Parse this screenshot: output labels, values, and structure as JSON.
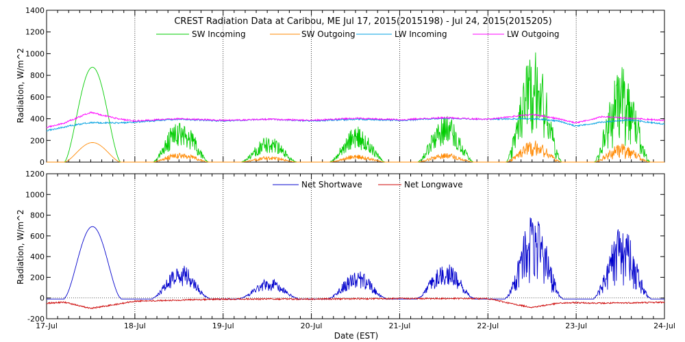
{
  "chart_data": [
    {
      "type": "line",
      "panel": "top",
      "title": "CREST Radiation Data at Caribou, ME   Jul 17, 2015(2015198) - Jul 24, 2015(2015205)",
      "ylabel": "Radiation, W/m^2",
      "xlabel": "",
      "xlim": [
        0,
        7
      ],
      "ylim": [
        0,
        1400
      ],
      "yticks": [
        "0",
        "200",
        "400",
        "600",
        "800",
        "1000",
        "1200",
        "1400"
      ],
      "grid": "dotted vertical at day boundaries",
      "legend_position": "top",
      "series": [
        {
          "name": "SW Incoming",
          "color": "#00cc00",
          "day_peaks": [
            875,
            420,
            240,
            330,
            440,
            1020,
            880
          ],
          "day_shape": [
            "smooth",
            "noisy",
            "noisy",
            "noisy",
            "noisy",
            "spiky",
            "spiky"
          ]
        },
        {
          "name": "SW Outgoing",
          "color": "#ff8800",
          "day_peaks": [
            180,
            95,
            55,
            70,
            85,
            200,
            170
          ]
        },
        {
          "name": "LW Incoming",
          "color": "#00a0e0",
          "x": [
            0,
            0.3,
            0.5,
            0.8,
            1.0,
            1.5,
            2.0,
            2.5,
            3.0,
            3.5,
            4.0,
            4.5,
            5.0,
            5.5,
            5.8,
            6.0,
            6.3,
            6.6,
            7.0
          ],
          "y": [
            290,
            340,
            365,
            360,
            370,
            395,
            380,
            395,
            380,
            395,
            385,
            405,
            395,
            400,
            380,
            330,
            370,
            390,
            350
          ]
        },
        {
          "name": "LW Outgoing",
          "color": "#ff00ff",
          "x": [
            0,
            0.2,
            0.5,
            0.8,
            1.0,
            1.5,
            2.0,
            2.5,
            3.0,
            3.5,
            4.0,
            4.5,
            5.0,
            5.5,
            5.8,
            6.0,
            6.3,
            6.5,
            7.0
          ],
          "y": [
            320,
            360,
            460,
            400,
            380,
            400,
            385,
            395,
            385,
            405,
            390,
            410,
            395,
            440,
            400,
            360,
            420,
            410,
            385
          ]
        }
      ]
    },
    {
      "type": "line",
      "panel": "bottom",
      "title": "",
      "ylabel": "Radiation, W/m^2",
      "xlabel": "Date (EST)",
      "xlim": [
        0,
        7
      ],
      "ylim": [
        -200,
        1200
      ],
      "yticks": [
        "-200",
        "0",
        "200",
        "400",
        "600",
        "800",
        "1000",
        "1200"
      ],
      "xticks": [
        "17-Jul",
        "18-Jul",
        "19-Jul",
        "20-Jul",
        "21-Jul",
        "22-Jul",
        "23-Jul",
        "24-Jul"
      ],
      "legend_position": "top",
      "series": [
        {
          "name": "Net Shortwave",
          "color": "#0000cc",
          "day_peaks": [
            690,
            330,
            200,
            265,
            350,
            810,
            690
          ],
          "night_value": -10
        },
        {
          "name": "Net Longwave",
          "color": "#cc0000",
          "x": [
            0,
            0.2,
            0.5,
            0.8,
            1.0,
            1.5,
            2.0,
            3.0,
            4.0,
            5.0,
            5.3,
            5.5,
            5.8,
            6.0,
            6.3,
            6.7,
            7.0
          ],
          "y": [
            -50,
            -40,
            -100,
            -60,
            -30,
            -20,
            -10,
            -10,
            -5,
            -5,
            -60,
            -90,
            -50,
            -45,
            -50,
            -45,
            -40
          ]
        }
      ]
    }
  ],
  "legend": {
    "sw_in": "SW Incoming",
    "sw_out": "SW Outgoing",
    "lw_in": "LW Incoming",
    "lw_out": "LW Outgoing",
    "net_sw": "Net Shortwave",
    "net_lw": "Net Longwave"
  }
}
